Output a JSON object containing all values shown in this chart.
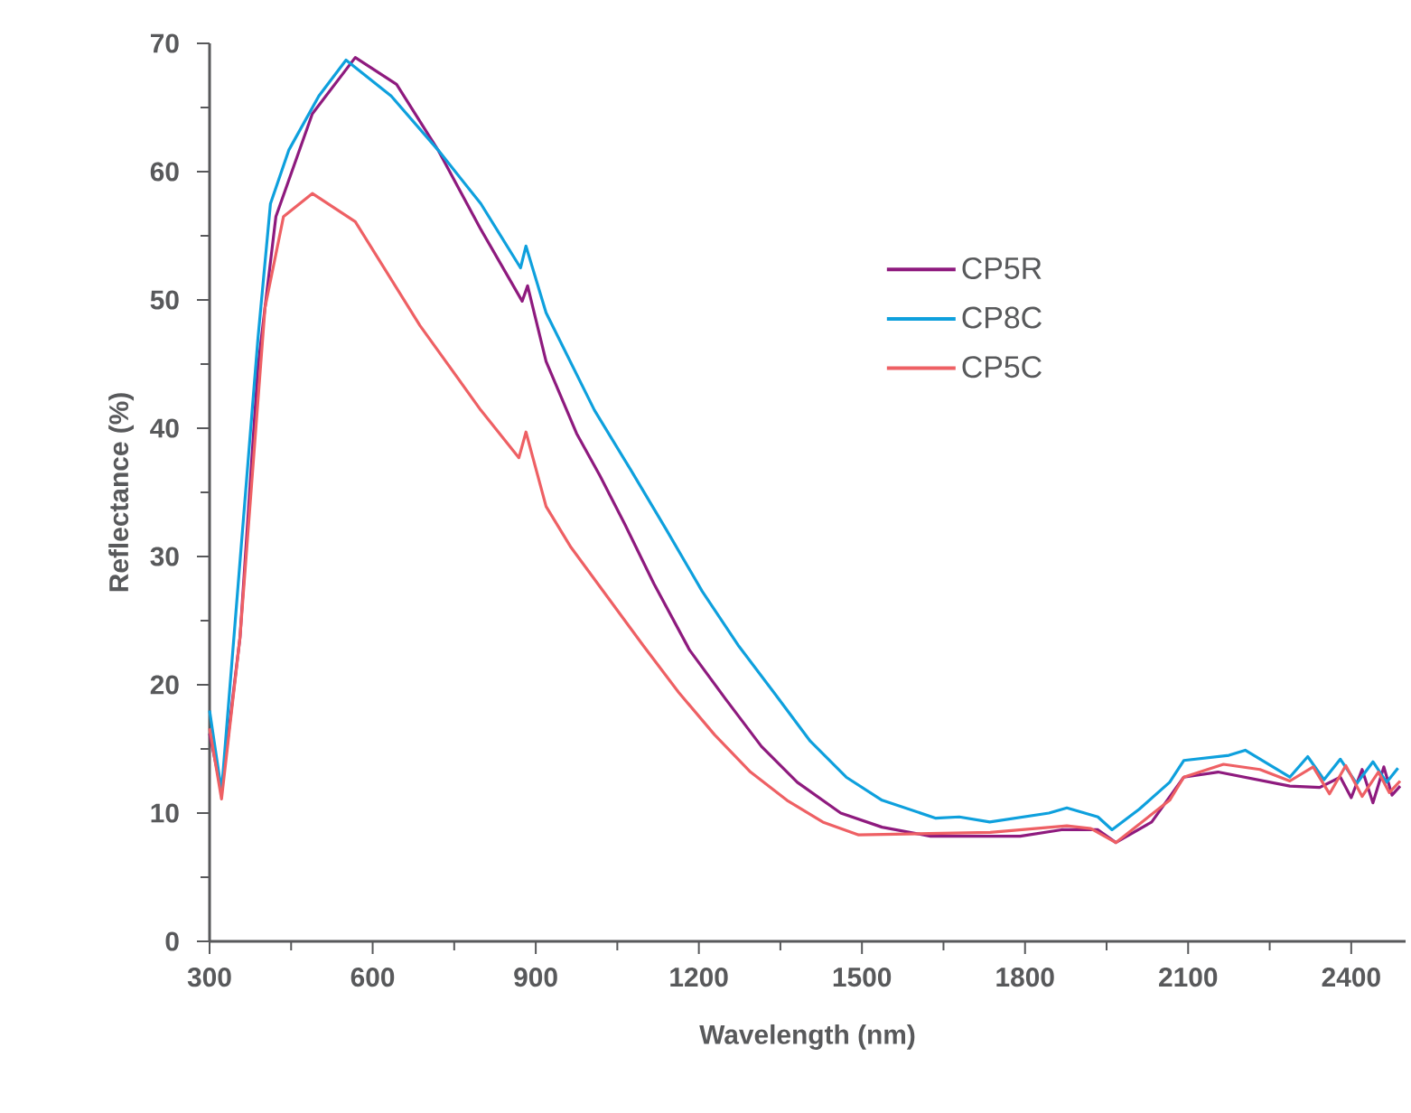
{
  "chart_data": {
    "type": "line",
    "xlabel": "Wavelength (nm)",
    "ylabel": "Reflectance (%)",
    "xlim": [
      300,
      2500
    ],
    "ylim": [
      0,
      70
    ],
    "xticks": [
      300,
      600,
      900,
      1200,
      1500,
      1800,
      2100,
      2400
    ],
    "yticks": [
      0,
      10,
      20,
      30,
      40,
      50,
      60,
      70
    ],
    "legend": "top right",
    "line_style": "solid",
    "marker": "none",
    "grid": false,
    "series": [
      {
        "name": "CP5R",
        "color": "#8e1a7e",
        "x": [
          300,
          322,
          356,
          389,
          422,
          489,
          568,
          644,
          720,
          799,
          875,
          885,
          919,
          975,
          1018,
          1064,
          1117,
          1183,
          1249,
          1315,
          1381,
          1461,
          1537,
          1626,
          1791,
          1867,
          1934,
          1967,
          2033,
          2092,
          2155,
          2287,
          2342,
          2380,
          2400,
          2420,
          2440,
          2460,
          2475,
          2490
        ],
        "values": [
          16.2,
          11.7,
          23.7,
          44.8,
          56.5,
          64.5,
          68.9,
          66.8,
          61.7,
          55.5,
          49.9,
          51.1,
          45.2,
          39.6,
          36.3,
          32.5,
          27.9,
          22.7,
          18.9,
          15.2,
          12.4,
          10.0,
          8.9,
          8.2,
          8.2,
          8.7,
          8.7,
          7.7,
          9.3,
          12.8,
          13.2,
          12.1,
          12.0,
          12.8,
          11.2,
          13.4,
          10.8,
          13.6,
          11.4,
          12.1
        ]
      },
      {
        "name": "CP8C",
        "color": "#0ea0dd",
        "x": [
          300,
          322,
          389,
          412,
          446,
          501,
          551,
          634,
          720,
          799,
          872,
          882,
          919,
          1008,
          1074,
          1140,
          1206,
          1272,
          1338,
          1405,
          1471,
          1537,
          1636,
          1679,
          1735,
          1844,
          1877,
          1934,
          1960,
          2010,
          2066,
          2092,
          2175,
          2205,
          2287,
          2320,
          2350,
          2380,
          2410,
          2440,
          2465,
          2486
        ],
        "values": [
          18.0,
          11.7,
          47.0,
          57.5,
          61.7,
          65.9,
          68.7,
          65.9,
          61.7,
          57.5,
          52.5,
          54.2,
          49.0,
          41.4,
          36.8,
          32.1,
          27.3,
          23.1,
          19.4,
          15.6,
          12.8,
          11.0,
          9.6,
          9.7,
          9.3,
          10.0,
          10.4,
          9.7,
          8.7,
          10.3,
          12.4,
          14.1,
          14.5,
          14.9,
          12.8,
          14.4,
          12.6,
          14.2,
          12.3,
          14.0,
          12.4,
          13.5
        ]
      },
      {
        "name": "CP5C",
        "color": "#ee6064",
        "x": [
          300,
          322,
          356,
          402,
          436,
          489,
          568,
          687,
          799,
          869,
          882,
          919,
          965,
          1031,
          1097,
          1163,
          1229,
          1295,
          1362,
          1428,
          1494,
          1736,
          1877,
          1921,
          1967,
          2066,
          2092,
          2165,
          2232,
          2287,
          2330,
          2360,
          2390,
          2420,
          2450,
          2470,
          2490
        ],
        "values": [
          16.6,
          11.1,
          23.7,
          49.4,
          56.5,
          58.3,
          56.1,
          48.0,
          41.4,
          37.7,
          39.7,
          33.9,
          30.7,
          26.9,
          23.1,
          19.4,
          16.1,
          13.2,
          11.0,
          9.3,
          8.3,
          8.5,
          9.0,
          8.8,
          7.7,
          11.0,
          12.8,
          13.8,
          13.4,
          12.5,
          13.6,
          11.5,
          13.7,
          11.3,
          13.2,
          11.6,
          12.5
        ]
      }
    ]
  }
}
